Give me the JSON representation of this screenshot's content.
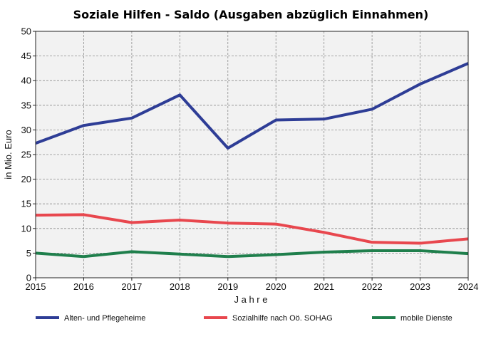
{
  "chart_data": {
    "type": "line",
    "title": "Soziale Hilfen - Saldo (Ausgaben abzüglich Einnahmen)",
    "xlabel": "J a h r e",
    "ylabel": "in  Mio.  Euro",
    "x": [
      2015,
      2016,
      2017,
      2018,
      2019,
      2020,
      2021,
      2022,
      2023,
      2024
    ],
    "ylim": [
      0,
      50
    ],
    "yticks": [
      0,
      5,
      10,
      15,
      20,
      25,
      30,
      35,
      40,
      45,
      50
    ],
    "grid": true,
    "legend_position": "bottom",
    "series": [
      {
        "name": "Alten- und Pflegeheime",
        "color": "#2e3d96",
        "values": [
          27.3,
          30.9,
          32.4,
          37.1,
          26.3,
          32.0,
          32.2,
          34.2,
          39.3,
          43.5
        ]
      },
      {
        "name": "Sozialhilfe nach Oö. SOHAG",
        "color": "#e8474e",
        "values": [
          12.7,
          12.8,
          11.2,
          11.7,
          11.1,
          10.9,
          9.2,
          7.2,
          7.0,
          7.9
        ]
      },
      {
        "name": "mobile Dienste",
        "color": "#1f7f4c",
        "values": [
          5.0,
          4.3,
          5.3,
          4.8,
          4.3,
          4.7,
          5.2,
          5.5,
          5.5,
          4.9
        ]
      }
    ]
  },
  "colors": {
    "plot_background": "#f2f2f2",
    "grid": "#8c8c8c"
  }
}
